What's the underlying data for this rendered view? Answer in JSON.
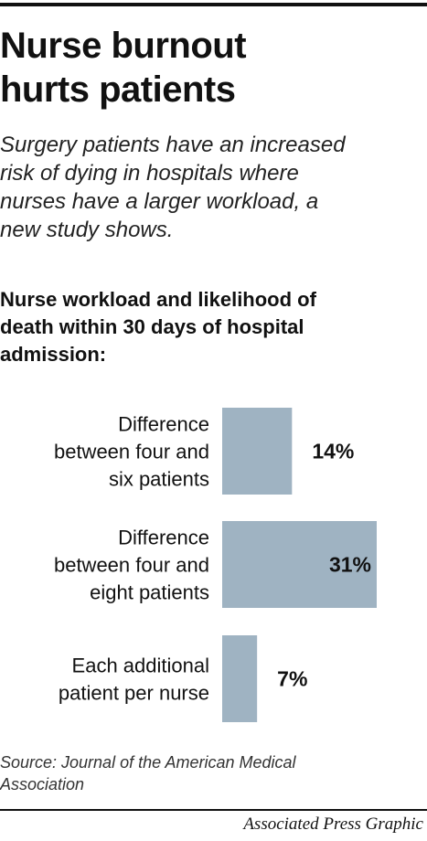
{
  "header": {
    "title": "Nurse burnout\nhurts patients",
    "subtitle": "Surgery patients have an increased\nrisk of dying in hospitals where\nnurses have a larger workload, a\nnew study shows."
  },
  "chart_data": {
    "type": "bar",
    "orientation": "horizontal",
    "title": "Nurse workload and likelihood of\ndeath within 30 days of hospital\nadmission:",
    "categories": [
      "Difference\nbetween four and\nsix patients",
      "Difference\nbetween four and\neight patients",
      "Each additional\npatient per nurse"
    ],
    "values": [
      14,
      31,
      7
    ],
    "value_labels": [
      "14%",
      "31%",
      "7%"
    ],
    "unit": "%",
    "xlim": [
      0,
      31
    ],
    "grid": false,
    "legend": "none",
    "colors": {
      "bar": "#9fb3c2",
      "text": "#111111"
    }
  },
  "footer": {
    "source": "Source: Journal of the American Medical\nAssociation",
    "credit": "Associated Press Graphic"
  }
}
